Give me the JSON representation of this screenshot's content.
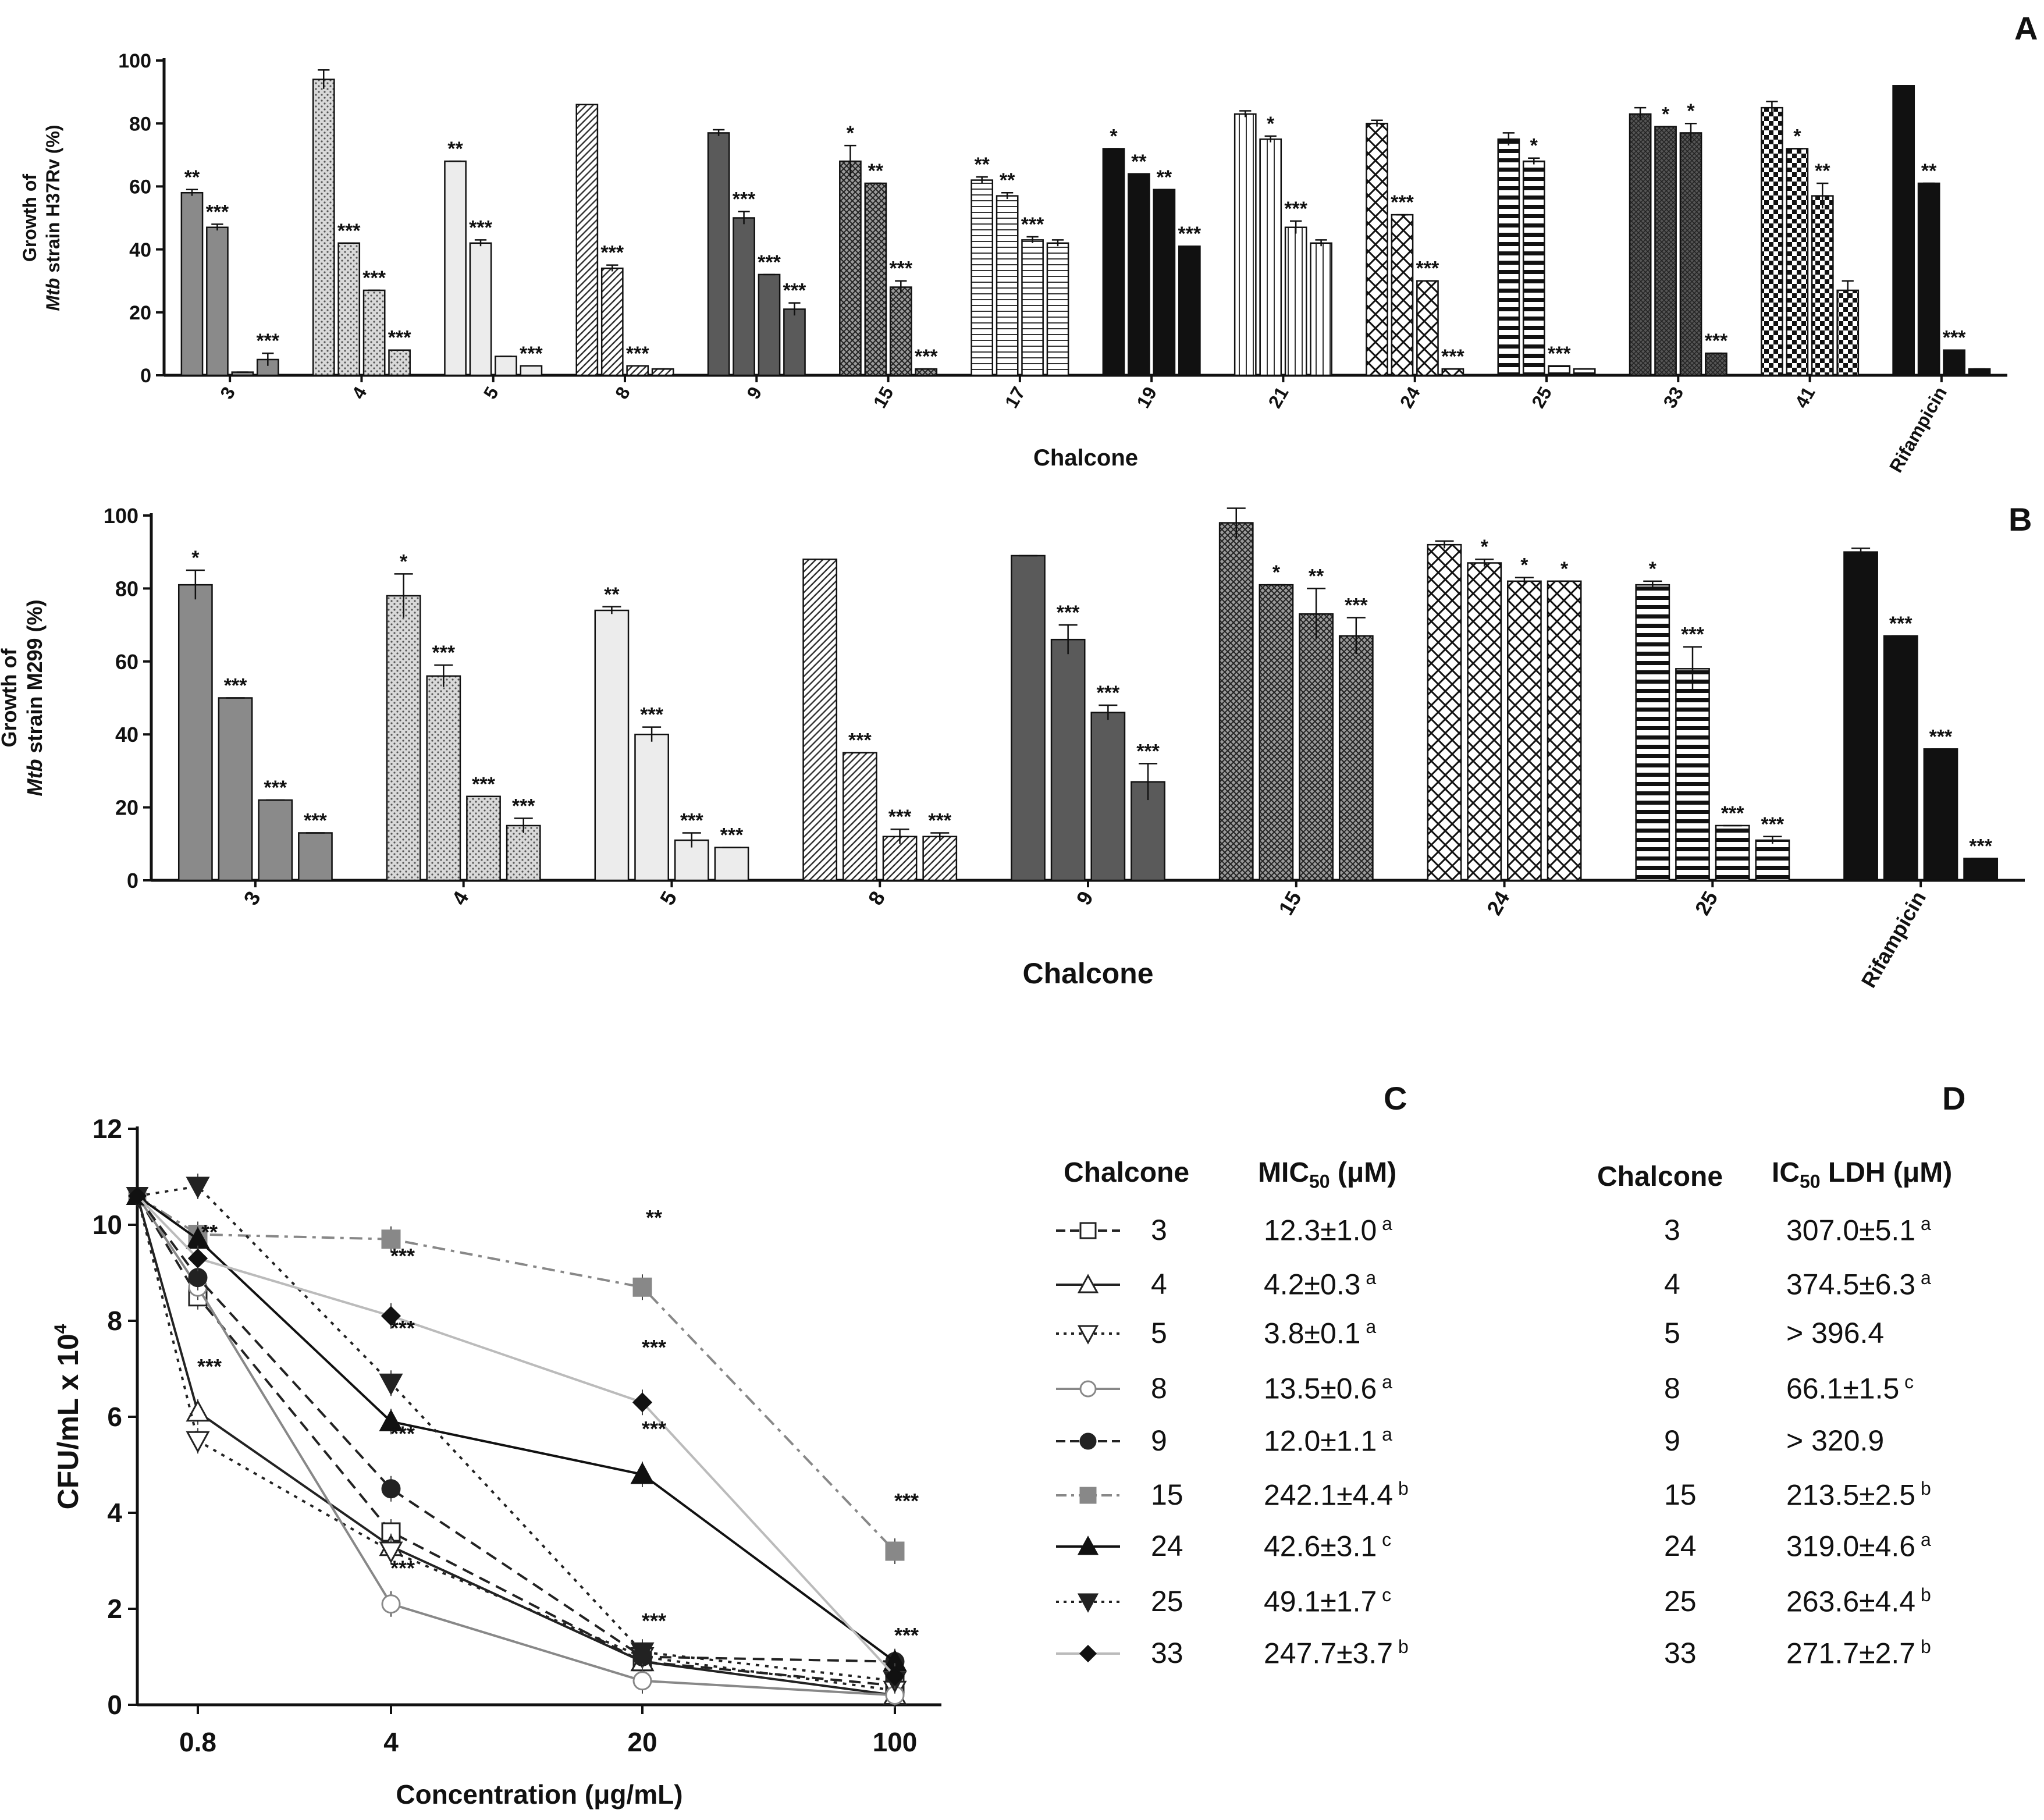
{
  "panel_labels": {
    "a": "A",
    "b": "B",
    "c": "C",
    "d": "D"
  },
  "chart_data": [
    {
      "id": "A",
      "type": "bar",
      "ylabel_line1": "Growth of",
      "ylabel_line2_italic": "Mtb",
      "ylabel_line2_rest": " strain H37Rv (%)",
      "xlabel": "Chalcone",
      "ylim": [
        0,
        100
      ],
      "yticks": [
        "0",
        "20",
        "40",
        "60",
        "80",
        "100"
      ],
      "groups": [
        {
          "label": "3",
          "fill": "gray",
          "values": [
            58,
            47,
            1,
            5
          ],
          "errors": [
            1,
            1,
            0,
            2
          ],
          "stars": [
            "**",
            "***",
            "",
            "***"
          ]
        },
        {
          "label": "4",
          "fill": "dots",
          "values": [
            94,
            42,
            27,
            8
          ],
          "errors": [
            3,
            0,
            0,
            0
          ],
          "stars": [
            "",
            "***",
            "***",
            "***"
          ]
        },
        {
          "label": "5",
          "fill": "light",
          "values": [
            68,
            42,
            6,
            3
          ],
          "errors": [
            0,
            1,
            0,
            0
          ],
          "stars": [
            "**",
            "***",
            "",
            "***"
          ]
        },
        {
          "label": "8",
          "fill": "diag",
          "values": [
            86,
            34,
            3,
            2
          ],
          "errors": [
            0,
            1,
            0,
            0
          ],
          "stars": [
            "",
            "***",
            "***",
            ""
          ]
        },
        {
          "label": "9",
          "fill": "dark",
          "values": [
            77,
            50,
            32,
            21
          ],
          "errors": [
            1,
            2,
            0,
            2
          ],
          "stars": [
            "",
            "***",
            "***",
            "***"
          ]
        },
        {
          "label": "15",
          "fill": "cross",
          "values": [
            68,
            61,
            28,
            2
          ],
          "errors": [
            5,
            0,
            2,
            0
          ],
          "stars": [
            "*",
            "**",
            "***",
            "***"
          ]
        },
        {
          "label": "17",
          "fill": "hlines",
          "values": [
            62,
            57,
            43,
            42
          ],
          "errors": [
            1,
            1,
            1,
            1
          ],
          "stars": [
            "**",
            "**",
            "***",
            ""
          ]
        },
        {
          "label": "19",
          "fill": "black",
          "values": [
            72,
            64,
            59,
            41
          ],
          "errors": [
            0,
            0,
            0,
            0
          ],
          "stars": [
            "*",
            "**",
            "**",
            "***"
          ]
        },
        {
          "label": "21",
          "fill": "vlines",
          "values": [
            83,
            75,
            47,
            42
          ],
          "errors": [
            1,
            1,
            2,
            1
          ],
          "stars": [
            "",
            "*",
            "***",
            ""
          ]
        },
        {
          "label": "24",
          "fill": "xcross",
          "values": [
            80,
            51,
            30,
            2
          ],
          "errors": [
            1,
            0,
            0,
            0
          ],
          "stars": [
            "",
            "***",
            "***",
            "***"
          ]
        },
        {
          "label": "25",
          "fill": "hbars",
          "values": [
            75,
            68,
            3,
            2
          ],
          "errors": [
            2,
            1,
            0,
            0
          ],
          "stars": [
            "",
            "*",
            "***",
            ""
          ]
        },
        {
          "label": "33",
          "fill": "mesh",
          "values": [
            83,
            79,
            77,
            7
          ],
          "errors": [
            2,
            0,
            3,
            0
          ],
          "stars": [
            "",
            "*",
            "*",
            "***"
          ]
        },
        {
          "label": "41",
          "fill": "checker",
          "values": [
            85,
            72,
            57,
            27
          ],
          "errors": [
            2,
            0,
            4,
            3
          ],
          "stars": [
            "",
            "*",
            "**",
            ""
          ]
        },
        {
          "label": "Rifampicin",
          "fill": "black",
          "values": [
            92,
            61,
            8,
            2
          ],
          "errors": [
            0,
            0,
            0,
            0
          ],
          "stars": [
            "",
            "**",
            "***",
            ""
          ]
        }
      ]
    },
    {
      "id": "B",
      "type": "bar",
      "ylabel_line1": "Growth of",
      "ylabel_line2_italic": "Mtb",
      "ylabel_line2_rest": " strain M299 (%)",
      "xlabel": "Chalcone",
      "ylim": [
        0,
        100
      ],
      "yticks": [
        "0",
        "20",
        "40",
        "60",
        "80",
        "100"
      ],
      "groups": [
        {
          "label": "3",
          "fill": "gray",
          "values": [
            81,
            50,
            22,
            13
          ],
          "errors": [
            4,
            0,
            0,
            0
          ],
          "stars": [
            "*",
            "***",
            "***",
            "***"
          ]
        },
        {
          "label": "4",
          "fill": "dots",
          "values": [
            78,
            56,
            23,
            15
          ],
          "errors": [
            6,
            3,
            0,
            2
          ],
          "stars": [
            "*",
            "***",
            "***",
            "***"
          ]
        },
        {
          "label": "5",
          "fill": "light",
          "values": [
            74,
            40,
            11,
            9
          ],
          "errors": [
            1,
            2,
            2,
            0
          ],
          "stars": [
            "**",
            "***",
            "***",
            "***"
          ]
        },
        {
          "label": "8",
          "fill": "diag",
          "values": [
            88,
            35,
            12,
            12
          ],
          "errors": [
            0,
            0,
            2,
            1
          ],
          "stars": [
            "",
            "***",
            "***",
            "***"
          ]
        },
        {
          "label": "9",
          "fill": "dark",
          "values": [
            89,
            66,
            46,
            27
          ],
          "errors": [
            0,
            4,
            2,
            5
          ],
          "stars": [
            "",
            "***",
            "***",
            "***"
          ]
        },
        {
          "label": "15",
          "fill": "cross",
          "values": [
            98,
            81,
            73,
            67
          ],
          "errors": [
            4,
            0,
            7,
            5
          ],
          "stars": [
            "",
            "*",
            "**",
            "***"
          ]
        },
        {
          "label": "24",
          "fill": "xcross",
          "values": [
            92,
            87,
            82,
            82
          ],
          "errors": [
            1,
            1,
            1,
            0
          ],
          "stars": [
            "",
            "*",
            "*",
            "*"
          ]
        },
        {
          "label": "25",
          "fill": "hbars",
          "values": [
            81,
            58,
            15,
            11
          ],
          "errors": [
            1,
            6,
            0,
            1
          ],
          "stars": [
            "*",
            "***",
            "***",
            "***"
          ]
        },
        {
          "label": "Rifampicin",
          "fill": "black",
          "values": [
            90,
            67,
            36,
            6
          ],
          "errors": [
            1,
            0,
            0,
            0
          ],
          "stars": [
            "",
            "***",
            "***",
            "***"
          ]
        }
      ]
    },
    {
      "id": "C-plot",
      "type": "line",
      "ylabel": "CFU/mL x 10",
      "ylabel_sup": "4",
      "xlabel": "Concentration (μg/mL)",
      "x": [
        "0.8",
        "4",
        "20",
        "100"
      ],
      "start_value": 10.6,
      "ylim": [
        0,
        12
      ],
      "yticks": [
        "0",
        "2",
        "4",
        "6",
        "8",
        "10",
        "12"
      ],
      "series": [
        {
          "name": "3",
          "marker": "open-square",
          "dash": "dash",
          "gray": "#222222",
          "values": [
            8.5,
            3.6,
            0.9,
            0.4
          ]
        },
        {
          "name": "4",
          "marker": "open-triangle-up",
          "dash": "solid",
          "gray": "#222222",
          "values": [
            6.1,
            3.3,
            0.9,
            0.2
          ]
        },
        {
          "name": "5",
          "marker": "open-triangle-down",
          "dash": "dot",
          "gray": "#222222",
          "values": [
            5.5,
            3.2,
            1.0,
            0.3
          ]
        },
        {
          "name": "8",
          "marker": "open-circle",
          "dash": "solid",
          "gray": "#888888",
          "values": [
            8.7,
            2.1,
            0.5,
            0.2
          ]
        },
        {
          "name": "9",
          "marker": "filled-circle",
          "dash": "dash",
          "gray": "#222222",
          "values": [
            8.9,
            4.5,
            1.0,
            0.9
          ]
        },
        {
          "name": "15",
          "marker": "filled-square",
          "dash": "dashdot",
          "gray": "#888888",
          "values": [
            9.8,
            9.7,
            8.7,
            3.2
          ]
        },
        {
          "name": "24",
          "marker": "filled-triangle-up",
          "dash": "solid",
          "gray": "#111111",
          "values": [
            9.7,
            5.9,
            4.8,
            0.9
          ]
        },
        {
          "name": "25",
          "marker": "filled-triangle-down",
          "dash": "dot",
          "gray": "#222222",
          "values": [
            10.8,
            6.7,
            1.1,
            0.5
          ]
        },
        {
          "name": "33",
          "marker": "filled-diamond",
          "dash": "solid",
          "gray": "#bbbbbb",
          "values": [
            9.3,
            8.1,
            6.3,
            0.6
          ]
        }
      ],
      "annotations": [
        {
          "text": "**",
          "x": 0,
          "y": 9.7
        },
        {
          "text": "***",
          "x": 0,
          "y": 6.9
        },
        {
          "text": "***",
          "x": 1,
          "y": 9.2
        },
        {
          "text": "***",
          "x": 1,
          "y": 7.7
        },
        {
          "text": "***",
          "x": 1,
          "y": 5.5
        },
        {
          "text": "***",
          "x": 1,
          "y": 2.7
        },
        {
          "text": "**",
          "x": 2,
          "y": 10.0
        },
        {
          "text": "***",
          "x": 2,
          "y": 7.3
        },
        {
          "text": "***",
          "x": 2,
          "y": 5.6
        },
        {
          "text": "***",
          "x": 2,
          "y": 1.6
        },
        {
          "text": "***",
          "x": 3,
          "y": 4.1
        },
        {
          "text": "***",
          "x": 3,
          "y": 1.3
        }
      ]
    }
  ],
  "table_c": {
    "header_chalcone": "Chalcone",
    "header_mic_a": "MIC",
    "header_mic_sub": "50",
    "header_mic_b": " (μM)",
    "rows": [
      {
        "name": "3",
        "value": "12.3±1.0",
        "sup": "a"
      },
      {
        "name": "4",
        "value": "4.2±0.3",
        "sup": "a"
      },
      {
        "name": "5",
        "value": "3.8±0.1",
        "sup": "a"
      },
      {
        "name": "8",
        "value": "13.5±0.6",
        "sup": "a"
      },
      {
        "name": "9",
        "value": "12.0±1.1",
        "sup": "a"
      },
      {
        "name": "15",
        "value": "242.1±4.4",
        "sup": "b"
      },
      {
        "name": "24",
        "value": "42.6±3.1",
        "sup": "c"
      },
      {
        "name": "25",
        "value": "49.1±1.7",
        "sup": "c"
      },
      {
        "name": "33",
        "value": "247.7±3.7",
        "sup": "b"
      }
    ]
  },
  "table_d": {
    "header_chalcone": "Chalcone",
    "header_ic_a": "IC",
    "header_ic_sub": "50",
    "header_ic_b": " LDH (μM)",
    "rows": [
      {
        "name": "3",
        "value": "307.0±5.1",
        "sup": "a"
      },
      {
        "name": "4",
        "value": "374.5±6.3",
        "sup": "a"
      },
      {
        "name": "5",
        "value": "> 396.4",
        "sup": ""
      },
      {
        "name": "8",
        "value": "66.1±1.5",
        "sup": "c"
      },
      {
        "name": "9",
        "value": "> 320.9",
        "sup": ""
      },
      {
        "name": "15",
        "value": "213.5±2.5",
        "sup": "b"
      },
      {
        "name": "24",
        "value": "319.0±4.6",
        "sup": "a"
      },
      {
        "name": "25",
        "value": "263.6±4.4",
        "sup": "b"
      },
      {
        "name": "33",
        "value": "271.7±2.7",
        "sup": "b"
      }
    ]
  }
}
